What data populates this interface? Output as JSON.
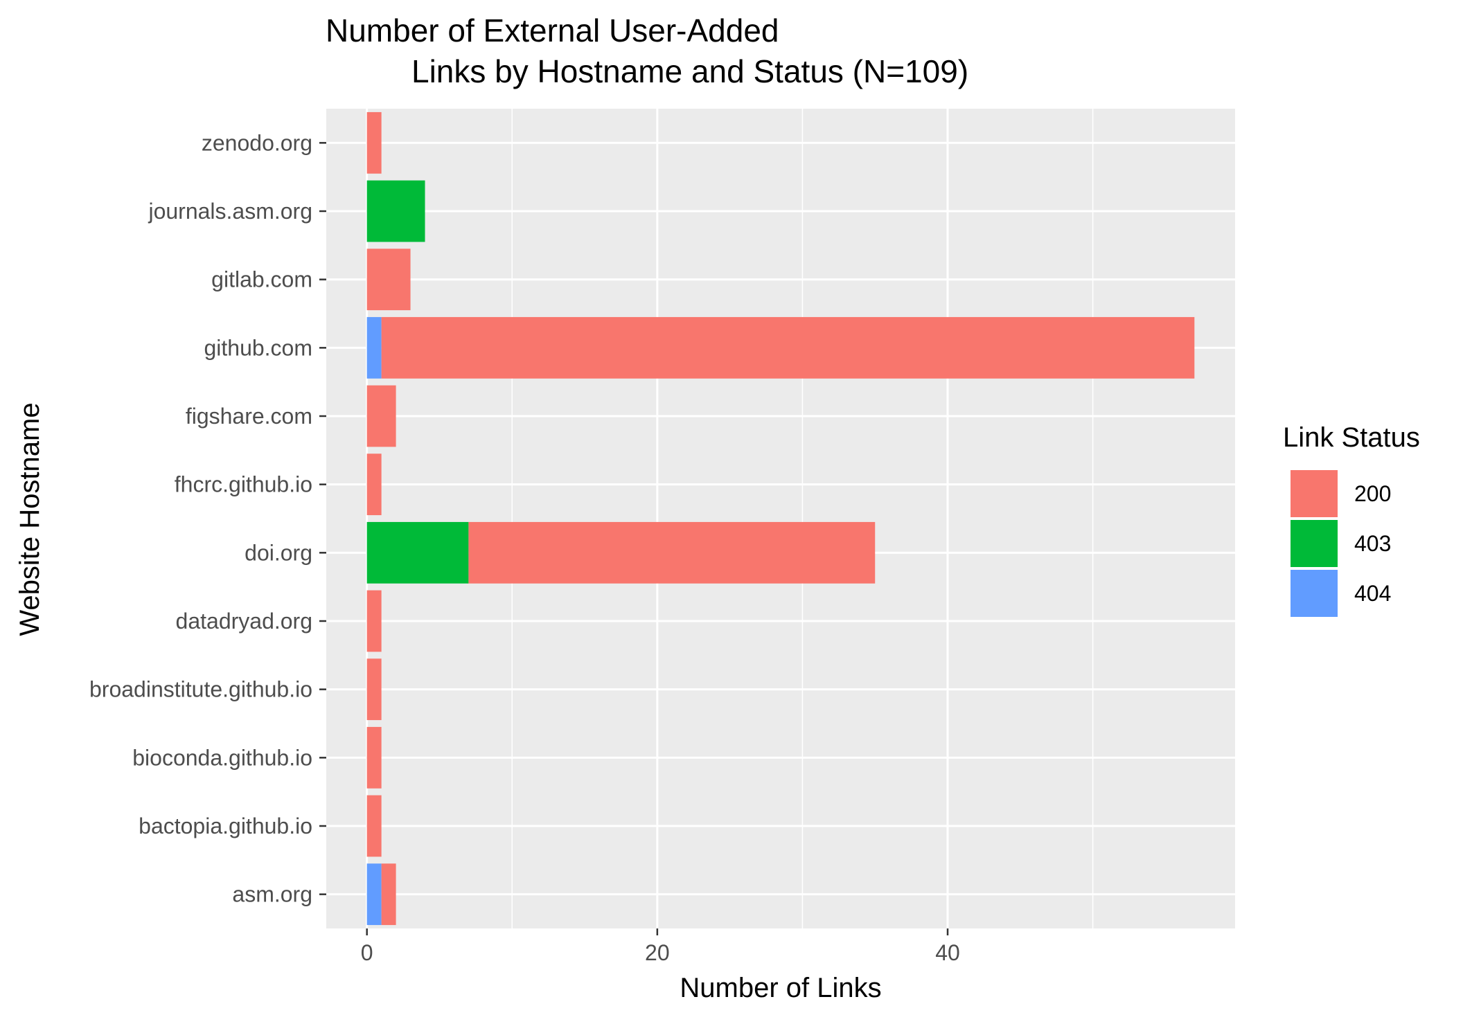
{
  "chart_data": {
    "type": "bar",
    "orientation": "horizontal",
    "stacked": true,
    "title": "Number of External User-Added\n        Links by Hostname and Status (N=109)",
    "title_lines": [
      "Number of External User-Added",
      "Links by Hostname and Status (N=109)"
    ],
    "xlabel": "Number of Links",
    "ylabel": "Website Hostname",
    "xlim": [
      -2.8,
      59.8
    ],
    "x_ticks": [
      0,
      20,
      40
    ],
    "grid": true,
    "categories": [
      "asm.org",
      "bactopia.github.io",
      "bioconda.github.io",
      "broadinstitute.github.io",
      "datadryad.org",
      "doi.org",
      "fhcrc.github.io",
      "figshare.com",
      "github.com",
      "gitlab.com",
      "journals.asm.org",
      "zenodo.org"
    ],
    "stack_order": [
      "404",
      "403",
      "200"
    ],
    "series": [
      {
        "name": "200",
        "color": "#F8766D",
        "values": [
          1,
          1,
          1,
          1,
          1,
          28,
          1,
          2,
          56,
          3,
          0,
          1
        ]
      },
      {
        "name": "403",
        "color": "#00BA38",
        "values": [
          0,
          0,
          0,
          0,
          0,
          7,
          0,
          0,
          0,
          0,
          4,
          0
        ]
      },
      {
        "name": "404",
        "color": "#619CFF",
        "values": [
          1,
          0,
          0,
          0,
          0,
          0,
          0,
          0,
          1,
          0,
          0,
          0
        ]
      }
    ],
    "legend": {
      "title": "Link Status",
      "position": "right",
      "entries": [
        {
          "label": "200",
          "color": "#F8766D"
        },
        {
          "label": "403",
          "color": "#00BA38"
        },
        {
          "label": "404",
          "color": "#619CFF"
        }
      ]
    },
    "panel_background": "#EBEBEB",
    "grid_color": "#FFFFFF"
  }
}
